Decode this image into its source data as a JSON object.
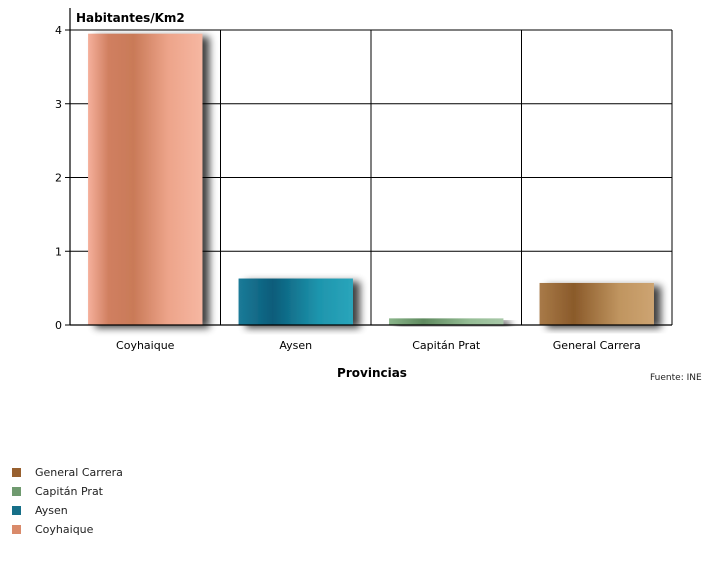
{
  "chart_data": {
    "type": "bar",
    "ylabel": "Habitantes/Km2",
    "xlabel": "Provincias",
    "categories": [
      "Coyhaique",
      "Aysen",
      "Capitán Prat",
      "General Carrera"
    ],
    "values": [
      3.95,
      0.63,
      0.09,
      0.57
    ],
    "ylim": [
      0,
      4
    ],
    "yticks": [
      "0",
      "1",
      "2",
      "3",
      "4"
    ],
    "grid": true,
    "colors": [
      "#e38a6f",
      "#0f6f8f",
      "#6f9a6f",
      "#9a6a38"
    ],
    "legend": {
      "placement": "bottom-left",
      "items": [
        {
          "label": "General Carrera",
          "color": "#98602f"
        },
        {
          "label": "Capitán Prat",
          "color": "#6f9a6f"
        },
        {
          "label": "Aysen",
          "color": "#166f88"
        },
        {
          "label": "Coyhaique",
          "color": "#d98a6a"
        }
      ]
    }
  },
  "source": "Fuente: INE"
}
